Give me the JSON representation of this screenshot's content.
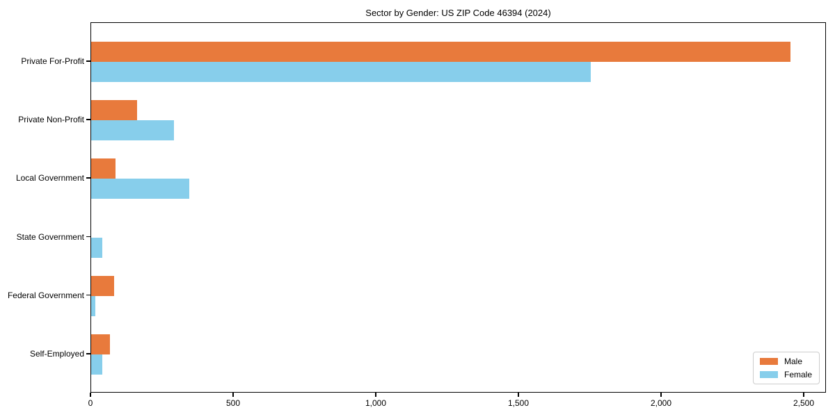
{
  "chart_data": {
    "type": "bar",
    "orientation": "horizontal",
    "title": "Sector by Gender: US ZIP Code 46394 (2024)",
    "categories": [
      "Private For-Profit",
      "Private Non-Profit",
      "Local Government",
      "State Government",
      "Federal Government",
      "Self-Employed"
    ],
    "series": [
      {
        "name": "Male",
        "color": "#e87a3c",
        "values": [
          2450,
          160,
          85,
          0,
          80,
          65
        ]
      },
      {
        "name": "Female",
        "color": "#87ceeb",
        "values": [
          1750,
          290,
          345,
          40,
          15,
          40
        ]
      }
    ],
    "xlabel": "",
    "ylabel": "",
    "xlim": [
      0,
      2578
    ],
    "xticks": [
      0,
      500,
      1000,
      1500,
      2000,
      2500
    ],
    "xtick_labels": [
      "0",
      "500",
      "1,000",
      "1,500",
      "2,000",
      "2,500"
    ],
    "legend_position": "lower right",
    "grid": false,
    "axis_color": "#000000",
    "background_color": "#ffffff"
  }
}
